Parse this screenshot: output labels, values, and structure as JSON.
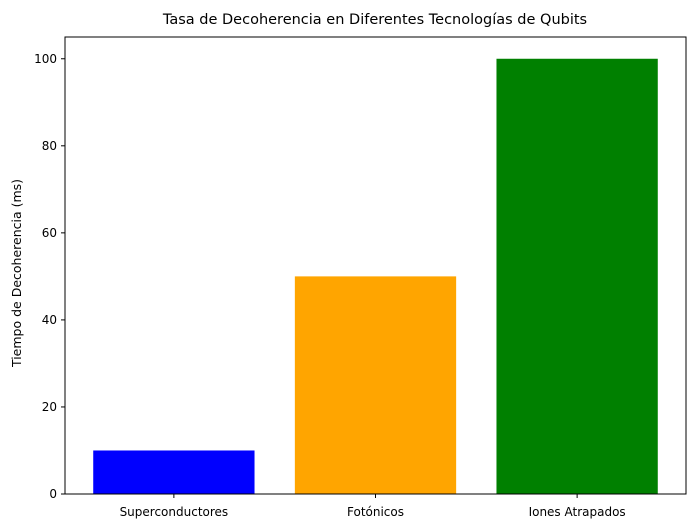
{
  "chart_data": {
    "type": "bar",
    "title": "Tasa de Decoherencia en Diferentes Tecnologías de Qubits",
    "xlabel": "",
    "ylabel": "Tiempo de Decoherencia (ms)",
    "categories": [
      "Superconductores",
      "Fotónicos",
      "Iones Atrapados"
    ],
    "values": [
      10,
      50,
      100
    ],
    "colors": [
      "#0000ff",
      "#ffa500",
      "#008000"
    ],
    "ylim": [
      0,
      105
    ],
    "yticks": [
      0,
      20,
      40,
      60,
      80,
      100
    ],
    "grid": false,
    "legend": "none"
  }
}
